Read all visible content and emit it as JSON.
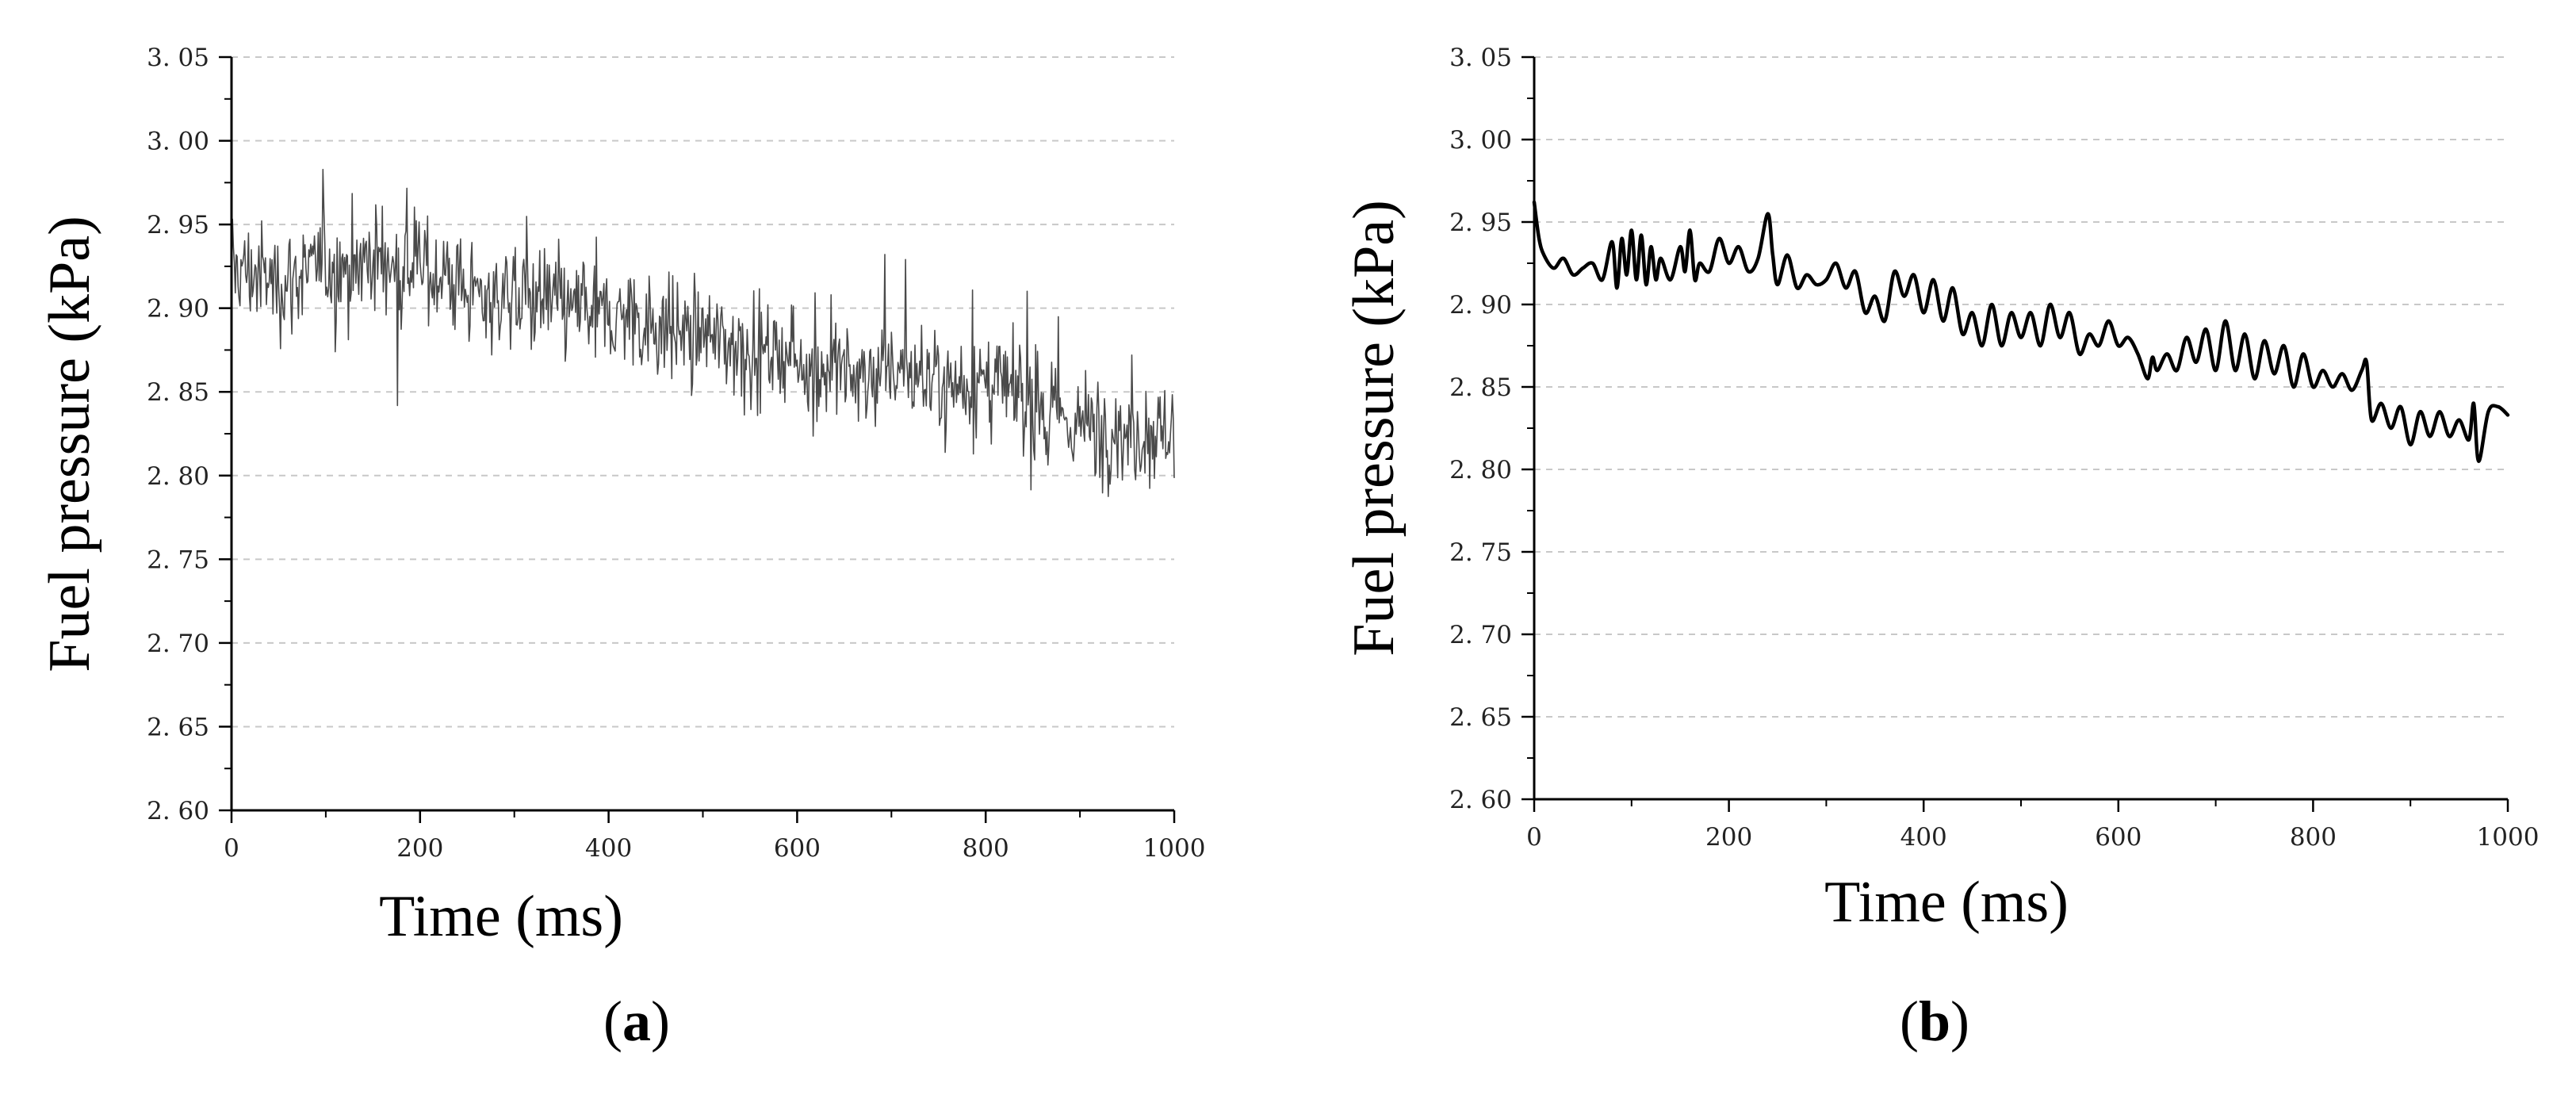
{
  "chart_data": [
    {
      "type": "line",
      "panel_label": "a",
      "xlabel": "Time (ms)",
      "ylabel": "Fuel pressure (kPa)",
      "xlim": [
        0,
        1000
      ],
      "ylim": [
        2.6,
        3.05
      ],
      "xticks": [
        "0",
        "200",
        "400",
        "600",
        "800",
        "1000"
      ],
      "yticks": [
        "2. 60",
        "2. 65",
        "2. 70",
        "2. 75",
        "2. 80",
        "2. 85",
        "2. 90",
        "2. 95",
        "3. 00",
        "3. 05"
      ],
      "grid": "horizontal dashed",
      "line_color": "#4a4a4a",
      "noisy": true,
      "series": [
        {
          "x": [
            0,
            25,
            50,
            75,
            100,
            125,
            150,
            175,
            200,
            225,
            250,
            275,
            300,
            325,
            350,
            375,
            400,
            425,
            450,
            475,
            500,
            525,
            550,
            575,
            600,
            625,
            650,
            675,
            700,
            725,
            750,
            775,
            800,
            825,
            850,
            875,
            900,
            925,
            950,
            975,
            1000
          ],
          "y": [
            2.925,
            2.92,
            2.915,
            2.92,
            2.925,
            2.925,
            2.93,
            2.925,
            2.925,
            2.92,
            2.91,
            2.905,
            2.91,
            2.905,
            2.9,
            2.9,
            2.895,
            2.895,
            2.89,
            2.885,
            2.885,
            2.88,
            2.875,
            2.875,
            2.87,
            2.865,
            2.86,
            2.86,
            2.865,
            2.86,
            2.86,
            2.855,
            2.855,
            2.85,
            2.84,
            2.835,
            2.83,
            2.83,
            2.825,
            2.825,
            2.83
          ]
        }
      ]
    },
    {
      "type": "line",
      "panel_label": "b",
      "xlabel": "Time (ms)",
      "ylabel": "Fuel pressure (kPa)",
      "xlim": [
        0,
        1000
      ],
      "ylim": [
        2.6,
        3.05
      ],
      "xticks": [
        "0",
        "200",
        "400",
        "600",
        "800",
        "1000"
      ],
      "yticks": [
        "2. 60",
        "2. 65",
        "2. 70",
        "2. 75",
        "2. 80",
        "2. 85",
        "2. 90",
        "2. 95",
        "3. 00",
        "3. 05"
      ],
      "grid": "horizontal dashed",
      "line_color": "#000000",
      "noisy": false,
      "series": [
        {
          "x": [
            0,
            5,
            10,
            20,
            30,
            40,
            50,
            60,
            70,
            80,
            85,
            90,
            95,
            100,
            105,
            110,
            115,
            120,
            125,
            130,
            140,
            150,
            155,
            160,
            165,
            170,
            180,
            190,
            200,
            210,
            220,
            230,
            240,
            245,
            250,
            260,
            270,
            280,
            290,
            300,
            310,
            320,
            330,
            340,
            350,
            360,
            370,
            380,
            390,
            400,
            410,
            420,
            430,
            440,
            450,
            460,
            470,
            480,
            490,
            500,
            510,
            520,
            530,
            540,
            550,
            560,
            570,
            580,
            590,
            600,
            610,
            620,
            630,
            635,
            640,
            650,
            660,
            670,
            680,
            690,
            700,
            710,
            720,
            730,
            740,
            750,
            760,
            770,
            780,
            790,
            800,
            810,
            820,
            830,
            840,
            850,
            855,
            860,
            870,
            880,
            890,
            900,
            910,
            920,
            930,
            940,
            950,
            960,
            965,
            970,
            980,
            990,
            1000
          ],
          "y": [
            2.962,
            2.94,
            2.93,
            2.922,
            2.928,
            2.918,
            2.922,
            2.925,
            2.915,
            2.938,
            2.91,
            2.94,
            2.918,
            2.945,
            2.915,
            2.942,
            2.912,
            2.935,
            2.915,
            2.928,
            2.915,
            2.935,
            2.92,
            2.945,
            2.915,
            2.925,
            2.92,
            2.94,
            2.925,
            2.935,
            2.92,
            2.928,
            2.955,
            2.93,
            2.912,
            2.93,
            2.91,
            2.918,
            2.912,
            2.915,
            2.925,
            2.91,
            2.92,
            2.895,
            2.905,
            2.89,
            2.92,
            2.905,
            2.918,
            2.895,
            2.915,
            2.89,
            2.91,
            2.882,
            2.895,
            2.875,
            2.9,
            2.875,
            2.895,
            2.88,
            2.895,
            2.875,
            2.9,
            2.88,
            2.895,
            2.87,
            2.882,
            2.875,
            2.89,
            2.875,
            2.88,
            2.87,
            2.855,
            2.868,
            2.86,
            2.87,
            2.86,
            2.88,
            2.865,
            2.885,
            2.86,
            2.89,
            2.86,
            2.882,
            2.855,
            2.878,
            2.858,
            2.875,
            2.85,
            2.87,
            2.85,
            2.86,
            2.85,
            2.858,
            2.848,
            2.86,
            2.865,
            2.83,
            2.84,
            2.825,
            2.838,
            2.815,
            2.835,
            2.82,
            2.835,
            2.82,
            2.83,
            2.818,
            2.84,
            2.805,
            2.835,
            2.838,
            2.833
          ]
        }
      ]
    }
  ]
}
